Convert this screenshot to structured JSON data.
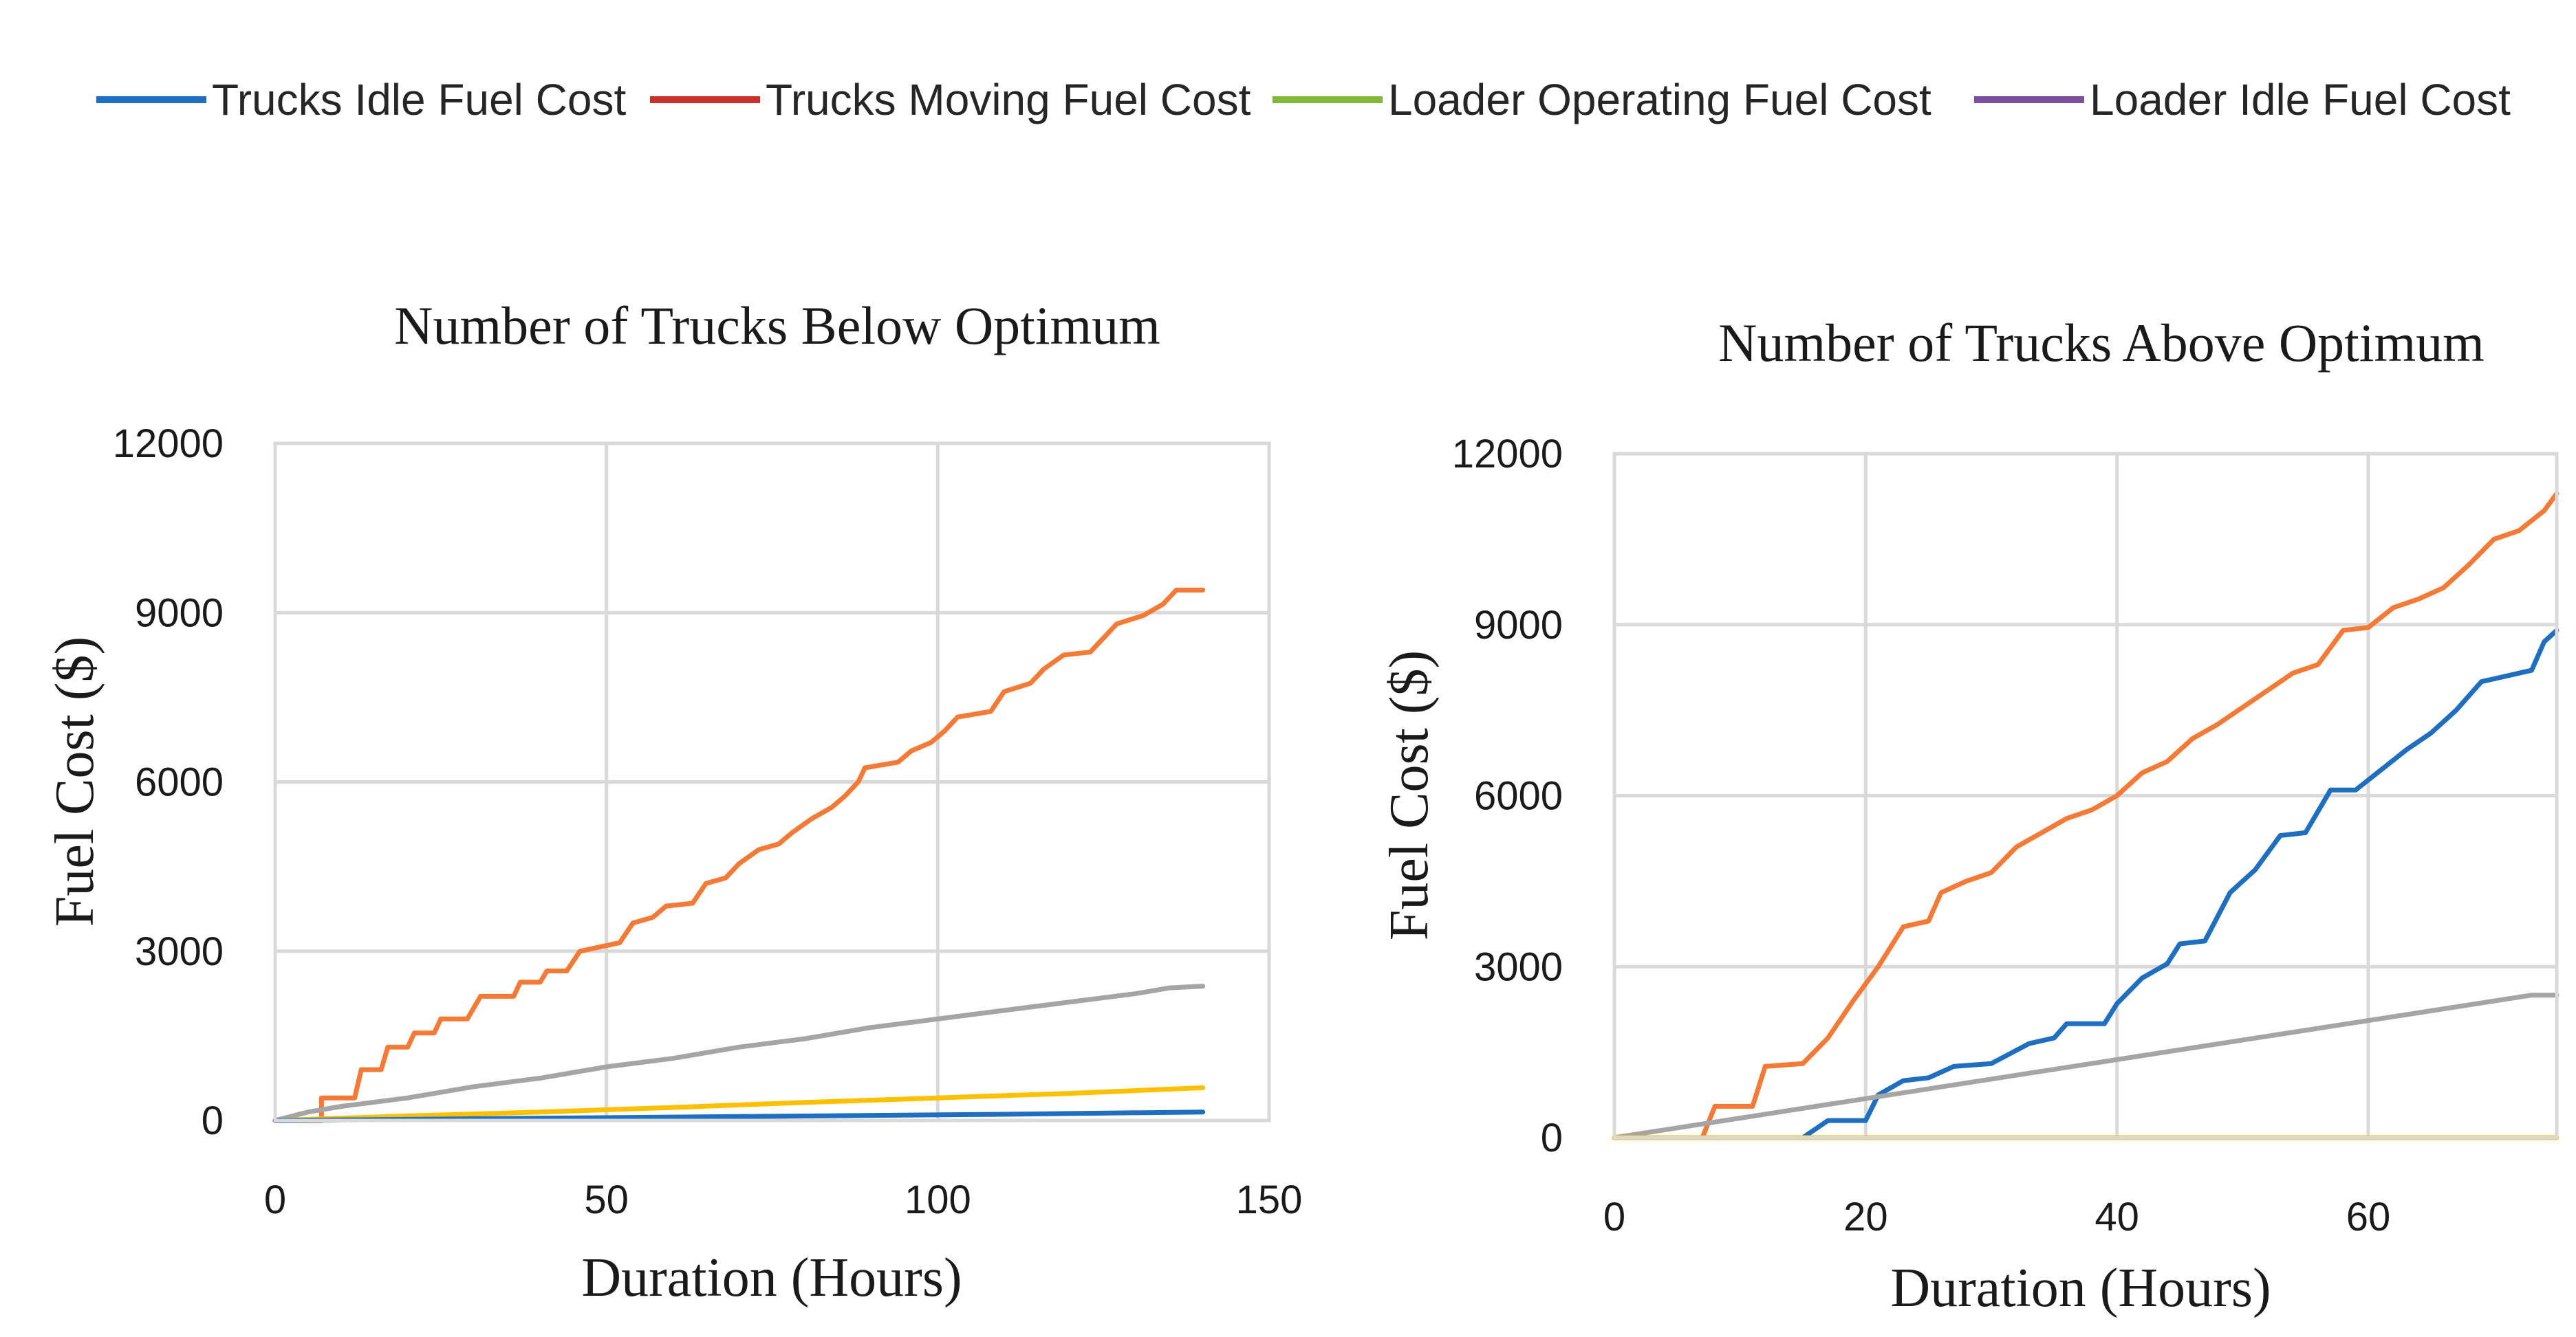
{
  "legend": [
    {
      "label": "Trucks Idle Fuel Cost",
      "color": "#1f6fc0"
    },
    {
      "label": "Trucks Moving Fuel Cost",
      "color": "#c8302a"
    },
    {
      "label": "Loader Operating Fuel Cost",
      "color": "#82b83a"
    },
    {
      "label": "Loader Idle Fuel Cost",
      "color": "#7a4f9e"
    }
  ],
  "chart_data": [
    {
      "type": "line",
      "title": "Number of Trucks Below Optimum",
      "xlabel": "Duration (Hours)",
      "ylabel": "Fuel Cost ($)",
      "xlim": [
        0,
        150
      ],
      "ylim": [
        0,
        12000
      ],
      "xticks": [
        0,
        50,
        100,
        150
      ],
      "yticks": [
        0,
        3000,
        6000,
        9000,
        12000
      ],
      "grid": true,
      "series": [
        {
          "name": "orange",
          "color": "#f47a35",
          "points": [
            [
              0,
              0
            ],
            [
              7,
              0
            ],
            [
              7,
              400
            ],
            [
              12,
              400
            ],
            [
              13,
              900
            ],
            [
              16,
              900
            ],
            [
              17,
              1300
            ],
            [
              20,
              1300
            ],
            [
              21,
              1550
            ],
            [
              24,
              1550
            ],
            [
              25,
              1800
            ],
            [
              29,
              1800
            ],
            [
              31,
              2200
            ],
            [
              36,
              2200
            ],
            [
              37,
              2450
            ],
            [
              40,
              2450
            ],
            [
              41,
              2650
            ],
            [
              44,
              2650
            ],
            [
              46,
              3000
            ],
            [
              52,
              3150
            ],
            [
              54,
              3500
            ],
            [
              57,
              3600
            ],
            [
              59,
              3800
            ],
            [
              63,
              3850
            ],
            [
              65,
              4200
            ],
            [
              68,
              4300
            ],
            [
              70,
              4550
            ],
            [
              73,
              4800
            ],
            [
              76,
              4900
            ],
            [
              78,
              5100
            ],
            [
              81,
              5350
            ],
            [
              84,
              5550
            ],
            [
              86,
              5750
            ],
            [
              88,
              6000
            ],
            [
              89,
              6250
            ],
            [
              94,
              6350
            ],
            [
              96,
              6550
            ],
            [
              99,
              6700
            ],
            [
              101,
              6900
            ],
            [
              103,
              7150
            ],
            [
              108,
              7250
            ],
            [
              110,
              7600
            ],
            [
              114,
              7750
            ],
            [
              116,
              8000
            ],
            [
              119,
              8250
            ],
            [
              123,
              8300
            ],
            [
              125,
              8550
            ],
            [
              127,
              8800
            ],
            [
              131,
              8950
            ],
            [
              134,
              9150
            ],
            [
              136,
              9400
            ],
            [
              140,
              9400
            ]
          ]
        },
        {
          "name": "gray",
          "color": "#a5a5a5",
          "points": [
            [
              0,
              0
            ],
            [
              5,
              150
            ],
            [
              10,
              250
            ],
            [
              20,
              400
            ],
            [
              30,
              600
            ],
            [
              40,
              750
            ],
            [
              50,
              950
            ],
            [
              60,
              1100
            ],
            [
              70,
              1300
            ],
            [
              80,
              1450
            ],
            [
              90,
              1650
            ],
            [
              100,
              1800
            ],
            [
              110,
              1950
            ],
            [
              120,
              2100
            ],
            [
              130,
              2250
            ],
            [
              135,
              2350
            ],
            [
              140,
              2380
            ]
          ]
        },
        {
          "name": "yellow",
          "color": "#ffc000",
          "points": [
            [
              0,
              0
            ],
            [
              20,
              80
            ],
            [
              40,
              150
            ],
            [
              60,
              230
            ],
            [
              80,
              320
            ],
            [
              100,
              400
            ],
            [
              120,
              480
            ],
            [
              140,
              580
            ]
          ]
        },
        {
          "name": "blue",
          "color": "#1f6fc0",
          "points": [
            [
              0,
              0
            ],
            [
              30,
              30
            ],
            [
              70,
              70
            ],
            [
              110,
              110
            ],
            [
              140,
              150
            ]
          ]
        }
      ]
    },
    {
      "type": "line",
      "title": "Number of Trucks Above Optimum",
      "xlabel": "Duration (Hours)",
      "ylabel": "Fuel Cost ($)",
      "xlim": [
        0,
        75
      ],
      "ylim": [
        0,
        12000
      ],
      "xticks": [
        0,
        20,
        40,
        60
      ],
      "yticks": [
        0,
        3000,
        6000,
        9000,
        12000
      ],
      "grid": true,
      "series": [
        {
          "name": "orange",
          "color": "#f47a35",
          "points": [
            [
              0,
              0
            ],
            [
              7,
              0
            ],
            [
              8,
              550
            ],
            [
              11,
              550
            ],
            [
              12,
              1250
            ],
            [
              15,
              1300
            ],
            [
              17,
              1750
            ],
            [
              19,
              2400
            ],
            [
              21,
              3000
            ],
            [
              23,
              3700
            ],
            [
              25,
              3800
            ],
            [
              26,
              4300
            ],
            [
              28,
              4500
            ],
            [
              30,
              4650
            ],
            [
              32,
              5100
            ],
            [
              34,
              5350
            ],
            [
              36,
              5600
            ],
            [
              38,
              5750
            ],
            [
              40,
              6000
            ],
            [
              42,
              6400
            ],
            [
              44,
              6600
            ],
            [
              46,
              7000
            ],
            [
              48,
              7250
            ],
            [
              50,
              7550
            ],
            [
              52,
              7850
            ],
            [
              54,
              8150
            ],
            [
              56,
              8300
            ],
            [
              58,
              8900
            ],
            [
              60,
              8950
            ],
            [
              62,
              9300
            ],
            [
              64,
              9450
            ],
            [
              66,
              9650
            ],
            [
              68,
              10050
            ],
            [
              70,
              10500
            ],
            [
              72,
              10650
            ],
            [
              74,
              11000
            ],
            [
              75,
              11300
            ]
          ]
        },
        {
          "name": "blue",
          "color": "#1f6fc0",
          "points": [
            [
              0,
              0
            ],
            [
              15,
              0
            ],
            [
              17,
              300
            ],
            [
              20,
              300
            ],
            [
              21,
              750
            ],
            [
              23,
              1000
            ],
            [
              25,
              1050
            ],
            [
              27,
              1250
            ],
            [
              30,
              1300
            ],
            [
              33,
              1650
            ],
            [
              35,
              1750
            ],
            [
              36,
              2000
            ],
            [
              39,
              2000
            ],
            [
              40,
              2350
            ],
            [
              42,
              2800
            ],
            [
              44,
              3050
            ],
            [
              45,
              3400
            ],
            [
              47,
              3450
            ],
            [
              49,
              4300
            ],
            [
              51,
              4700
            ],
            [
              53,
              5300
            ],
            [
              55,
              5350
            ],
            [
              57,
              6100
            ],
            [
              59,
              6100
            ],
            [
              61,
              6450
            ],
            [
              63,
              6800
            ],
            [
              65,
              7100
            ],
            [
              67,
              7500
            ],
            [
              69,
              8000
            ],
            [
              71,
              8100
            ],
            [
              73,
              8200
            ],
            [
              74,
              8700
            ],
            [
              75,
              8900
            ]
          ]
        },
        {
          "name": "gray",
          "color": "#a5a5a5",
          "points": [
            [
              0,
              0
            ],
            [
              73,
              2500
            ],
            [
              75,
              2500
            ]
          ]
        },
        {
          "name": "yellow",
          "color": "#ffc000",
          "points": [
            [
              0,
              0
            ],
            [
              75,
              0
            ]
          ]
        }
      ]
    }
  ]
}
